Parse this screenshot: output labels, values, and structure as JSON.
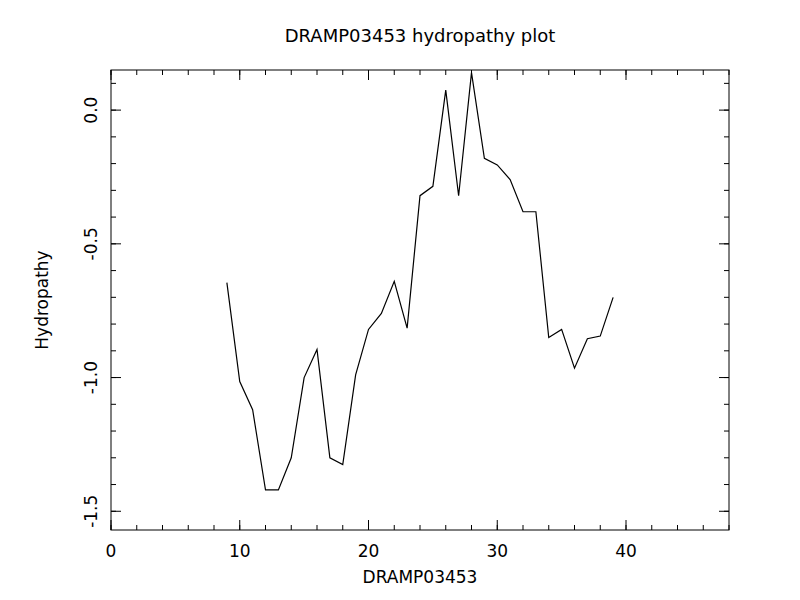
{
  "chart_data": {
    "type": "line",
    "title": "DRAMP03453 hydropathy plot",
    "x_label": "DRAMP03453",
    "y_label": "Hydropathy",
    "x": [
      9,
      10,
      11,
      12,
      13,
      14,
      15,
      16,
      17,
      18,
      19,
      20,
      21,
      22,
      23,
      24,
      25,
      26,
      27,
      28,
      29,
      30,
      31,
      32,
      33,
      34,
      35,
      36,
      37,
      38,
      39
    ],
    "values": [
      -0.645,
      -1.015,
      -1.12,
      -1.42,
      -1.42,
      -1.3,
      -1.0,
      -0.895,
      -1.3,
      -1.325,
      -0.99,
      -0.82,
      -0.76,
      -0.64,
      -0.815,
      -0.32,
      -0.285,
      0.075,
      -0.32,
      0.14,
      -0.18,
      -0.205,
      -0.26,
      -0.38,
      -0.38,
      -0.85,
      -0.82,
      -0.965,
      -0.855,
      -0.845,
      -0.7
    ],
    "color": "#000000",
    "xlim": [
      0,
      48
    ],
    "xticks": [
      0,
      10,
      20,
      30,
      40
    ],
    "ylim": [
      -1.57,
      0.15
    ],
    "yticks": [
      {
        "value": -1.5,
        "label": "-1.5"
      },
      {
        "value": -1.0,
        "label": "-1.0"
      },
      {
        "value": -0.5,
        "label": "-0.5"
      },
      {
        "value": 0,
        "label": "0.0"
      }
    ],
    "grid": false
  }
}
